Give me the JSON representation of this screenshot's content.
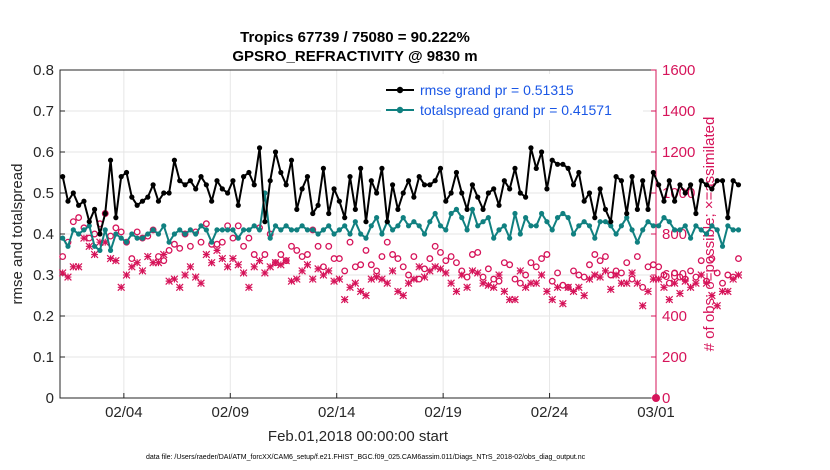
{
  "chart_data": {
    "type": "line",
    "title_line1": "Tropics 67739 / 75080 = 90.222%",
    "title_line2": "GPSRO_REFRACTIVITY @ 9830 m",
    "xlabel": "Feb.01,2018 00:00:00 start",
    "ylabel_left": "rmse and totalspread",
    "ylabel_right": "# of obs: o=possible; ×=assimilated",
    "footnote": "data file: /Users/raeder/DAI/ATM_forcXX/CAM6_setup/f.e21.FHIST_BGC.f09_025.CAM6assim.011/Diags_NTrS_2018-02/obs_diag_output.nc",
    "xlim": [
      1,
      29
    ],
    "ylim_left": [
      0,
      0.8
    ],
    "ylim_right": [
      0,
      1600
    ],
    "x_ticks": [
      4,
      9,
      14,
      19,
      24,
      29
    ],
    "x_tick_labels": [
      "02/04",
      "02/09",
      "02/14",
      "02/19",
      "02/24",
      "03/01"
    ],
    "y_left_ticks": [
      "0",
      "0.1",
      "0.2",
      "0.3",
      "0.4",
      "0.5",
      "0.6",
      "0.7",
      "0.8"
    ],
    "y_right_ticks": [
      "0",
      "200",
      "400",
      "600",
      "800",
      "1000",
      "1200",
      "1400",
      "1600"
    ],
    "colors": {
      "rmse": "#000000",
      "spread": "#108080",
      "obs": "#d6145a",
      "legend_text": "#1a57e6"
    },
    "legend": [
      "rmse grand pr = 0.51315",
      "totalspread grand pr = 0.41571"
    ],
    "x_start": 1.125,
    "x_step": 0.25,
    "series": [
      {
        "name": "rmse",
        "values": [
          0.54,
          0.48,
          0.5,
          0.47,
          0.48,
          0.43,
          0.46,
          0.4,
          0.45,
          0.58,
          0.44,
          0.54,
          0.55,
          0.49,
          0.47,
          0.48,
          0.49,
          0.52,
          0.48,
          0.5,
          0.5,
          0.58,
          0.53,
          0.52,
          0.53,
          0.51,
          0.54,
          0.52,
          0.48,
          0.53,
          0.51,
          0.5,
          0.53,
          0.47,
          0.54,
          0.55,
          0.52,
          0.61,
          0.43,
          0.53,
          0.6,
          0.55,
          0.52,
          0.58,
          0.46,
          0.51,
          0.54,
          0.45,
          0.47,
          0.56,
          0.45,
          0.51,
          0.48,
          0.44,
          0.54,
          0.46,
          0.56,
          0.43,
          0.53,
          0.5,
          0.56,
          0.43,
          0.52,
          0.46,
          0.5,
          0.53,
          0.49,
          0.54,
          0.52,
          0.52,
          0.53,
          0.56,
          0.48,
          0.5,
          0.55,
          0.5,
          0.46,
          0.52,
          0.49,
          0.46,
          0.5,
          0.51,
          0.47,
          0.53,
          0.51,
          0.56,
          0.5,
          0.49,
          0.61,
          0.56,
          0.6,
          0.51,
          0.58,
          0.57,
          0.57,
          0.56,
          0.52,
          0.55,
          0.48,
          0.5,
          0.44,
          0.51,
          0.46,
          0.43,
          0.54,
          0.53,
          0.45,
          0.54,
          0.46,
          0.53,
          0.46,
          0.55,
          0.52,
          0.48,
          0.53,
          0.48,
          0.52,
          0.5,
          0.52,
          0.45,
          0.53,
          0.52,
          0.51,
          0.53,
          0.53,
          0.44,
          0.53,
          0.52
        ]
      },
      {
        "name": "totalspread",
        "values": [
          0.39,
          0.37,
          0.41,
          0.4,
          0.41,
          0.42,
          0.37,
          0.36,
          0.41,
          0.36,
          0.4,
          0.39,
          0.38,
          0.4,
          0.39,
          0.39,
          0.4,
          0.41,
          0.4,
          0.42,
          0.38,
          0.4,
          0.41,
          0.4,
          0.41,
          0.4,
          0.42,
          0.41,
          0.38,
          0.41,
          0.41,
          0.41,
          0.41,
          0.39,
          0.41,
          0.41,
          0.42,
          0.41,
          0.5,
          0.39,
          0.42,
          0.41,
          0.42,
          0.41,
          0.41,
          0.42,
          0.41,
          0.41,
          0.4,
          0.41,
          0.42,
          0.4,
          0.41,
          0.42,
          0.4,
          0.43,
          0.4,
          0.39,
          0.42,
          0.44,
          0.4,
          0.43,
          0.41,
          0.42,
          0.44,
          0.42,
          0.43,
          0.42,
          0.4,
          0.43,
          0.45,
          0.42,
          0.41,
          0.45,
          0.46,
          0.44,
          0.41,
          0.46,
          0.42,
          0.43,
          0.44,
          0.39,
          0.41,
          0.42,
          0.39,
          0.45,
          0.4,
          0.44,
          0.42,
          0.42,
          0.45,
          0.43,
          0.41,
          0.44,
          0.45,
          0.44,
          0.4,
          0.42,
          0.43,
          0.42,
          0.39,
          0.43,
          0.43,
          0.42,
          0.4,
          0.42,
          0.44,
          0.41,
          0.38,
          0.41,
          0.43,
          0.42,
          0.42,
          0.44,
          0.43,
          0.41,
          0.41,
          0.42,
          0.39,
          0.42,
          0.41,
          0.4,
          0.42,
          0.41,
          0.37,
          0.42,
          0.41,
          0.41
        ]
      },
      {
        "name": "obs_possible",
        "values": [
          690,
          760,
          860,
          880,
          830,
          780,
          800,
          850,
          900,
          790,
          830,
          810,
          760,
          680,
          810,
          780,
          790,
          820,
          690,
          670,
          720,
          750,
          730,
          800,
          740,
          810,
          760,
          850,
          750,
          750,
          760,
          840,
          780,
          840,
          740,
          780,
          700,
          830,
          700,
          800,
          660,
          700,
          670,
          740,
          720,
          690,
          700,
          820,
          740,
          640,
          740,
          680,
          680,
          620,
          760,
          640,
          650,
          720,
          650,
          620,
          690,
          760,
          700,
          680,
          640,
          600,
          690,
          580,
          630,
          680,
          740,
          710,
          670,
          690,
          660,
          620,
          590,
          700,
          710,
          590,
          630,
          580,
          570,
          660,
          650,
          580,
          560,
          600,
          660,
          640,
          680,
          700,
          570,
          610,
          550,
          540,
          620,
          600,
          590,
          650,
          700,
          670,
          690,
          600,
          620,
          610,
          660,
          580,
          690,
          540,
          640,
          650,
          640,
          600,
          560,
          610,
          590,
          580,
          620,
          590,
          670,
          570,
          680,
          610,
          560,
          600,
          590,
          680
        ]
      },
      {
        "name": "obs_assimilated",
        "values": [
          610,
          590,
          640,
          640,
          780,
          740,
          700,
          760,
          760,
          680,
          670,
          540,
          600,
          640,
          660,
          620,
          690,
          660,
          660,
          700,
          570,
          580,
          540,
          600,
          640,
          590,
          560,
          700,
          660,
          720,
          680,
          640,
          680,
          650,
          610,
          540,
          640,
          670,
          610,
          640,
          660,
          650,
          670,
          570,
          580,
          620,
          650,
          580,
          630,
          600,
          620,
          570,
          580,
          480,
          540,
          560,
          520,
          500,
          580,
          590,
          580,
          560,
          620,
          520,
          500,
          560,
          580,
          640,
          590,
          620,
          640,
          630,
          610,
          560,
          520,
          600,
          540,
          620,
          610,
          560,
          550,
          540,
          600,
          520,
          480,
          480,
          620,
          540,
          560,
          560,
          600,
          520,
          480,
          540,
          460,
          540,
          520,
          540,
          500,
          580,
          600,
          590,
          620,
          530,
          600,
          560,
          560,
          610,
          560,
          450,
          520,
          580,
          580,
          540,
          480,
          560,
          510,
          570,
          540,
          560,
          600,
          560,
          500,
          450,
          520,
          520,
          580,
          600
        ]
      }
    ]
  }
}
